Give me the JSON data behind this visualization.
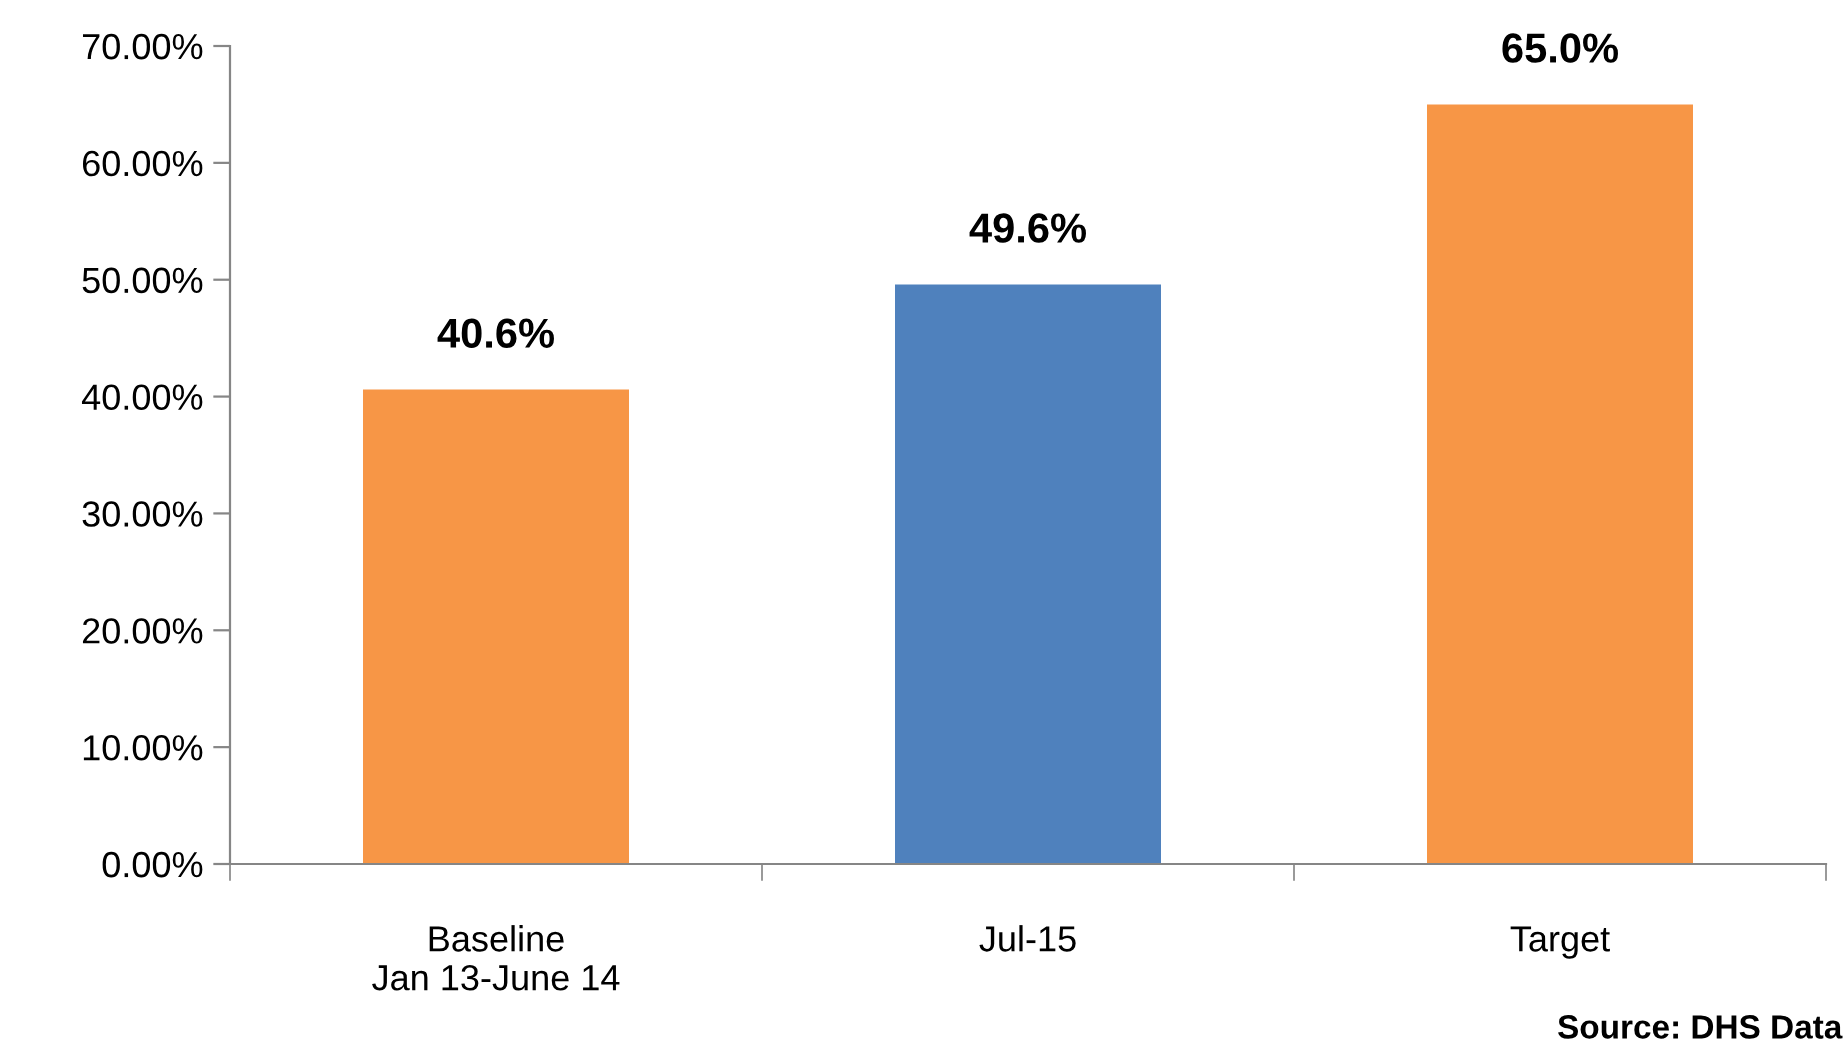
{
  "chart_data": {
    "type": "bar",
    "categories": [
      "Baseline\nJan 13-June 14",
      "Jul-15",
      "Target"
    ],
    "values": [
      40.6,
      49.6,
      65.0
    ],
    "colors": [
      "#f79646",
      "#4f81bd",
      "#f79646"
    ],
    "value_labels": [
      "40.6%",
      "49.6%",
      "65.0%"
    ],
    "ylim": [
      0,
      70
    ],
    "yticks": [
      {
        "value": 0,
        "label": "0.00%"
      },
      {
        "value": 10,
        "label": "10.00%"
      },
      {
        "value": 20,
        "label": "20.00%"
      },
      {
        "value": 30,
        "label": "30.00%"
      },
      {
        "value": 40,
        "label": "40.00%"
      },
      {
        "value": 50,
        "label": "50.00%"
      },
      {
        "value": 60,
        "label": "60.00%"
      },
      {
        "value": 70,
        "label": "70.00%"
      }
    ],
    "grid": false,
    "legend": false,
    "annotations": [
      "Source: DHS Data"
    ]
  }
}
